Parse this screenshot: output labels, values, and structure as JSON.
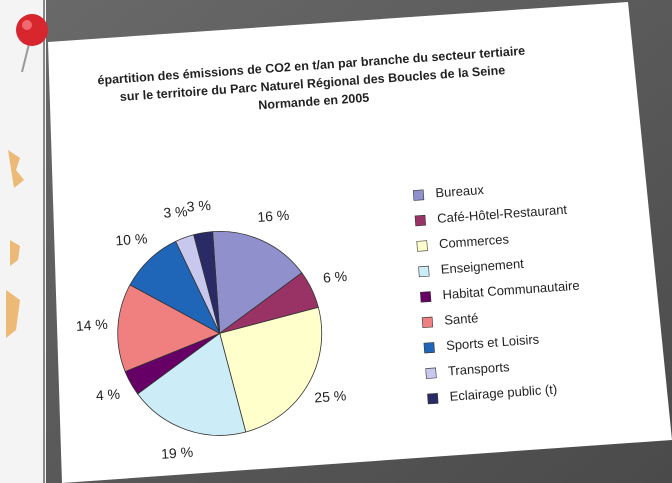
{
  "chart_data": {
    "type": "pie",
    "title": [
      "épartition des émissions de CO2 en t/an par branche du secteur tertiaire",
      "sur le territoire du Parc Naturel Régional des Boucles de la Seine",
      "Normande en 2005"
    ],
    "categories": [
      "Bureaux",
      "Café-Hôtel-Restaurant",
      "Commerces",
      "Enseignement",
      "Habitat Communautaire",
      "Santé",
      "Sports et Loisirs",
      "Transports",
      "Eclairage public (t)"
    ],
    "values": [
      16,
      6,
      25,
      19,
      4,
      14,
      10,
      3,
      3
    ],
    "value_labels": [
      "16 %",
      "6 %",
      "25 %",
      "19 %",
      "4 %",
      "14 %",
      "10 %",
      "3 %",
      "3 %"
    ],
    "colors": [
      "#9090cc",
      "#993366",
      "#ffffcc",
      "#ccecf8",
      "#660066",
      "#f08080",
      "#1f66b8",
      "#c8c8ee",
      "#2a2a66"
    ],
    "legend": "right"
  }
}
